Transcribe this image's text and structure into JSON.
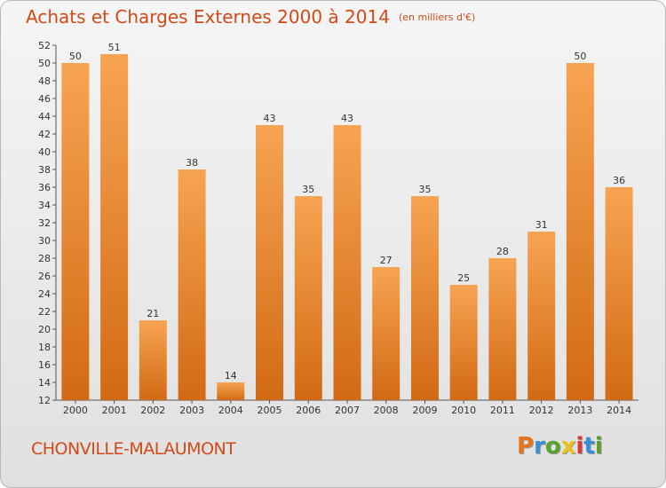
{
  "header": {
    "title": "Achats et Charges Externes 2000 à 2014",
    "subtitle": "(en milliers d'€)"
  },
  "footer": {
    "place": "CHONVILLE-MALAUMONT",
    "logo": "Proxiti"
  },
  "colors": {
    "accent_text": "#d14a18",
    "bar_top": "#f7a452",
    "bar_bottom": "#d26a14",
    "logo_letters": [
      "#e8731a",
      "#3a8fd6",
      "#5aa02c",
      "#e8c21a",
      "#d93a3a",
      "#3a8fd6",
      "#5aa02c"
    ]
  },
  "chart_data": {
    "type": "bar",
    "title": "Achats et Charges Externes 2000 à 2014",
    "subtitle": "(en milliers d'€)",
    "xlabel": "",
    "ylabel": "",
    "categories": [
      "2000",
      "2001",
      "2002",
      "2003",
      "2004",
      "2005",
      "2006",
      "2007",
      "2008",
      "2009",
      "2010",
      "2011",
      "2012",
      "2013",
      "2014"
    ],
    "values": [
      50,
      51,
      21,
      38,
      14,
      43,
      35,
      43,
      27,
      35,
      25,
      28,
      31,
      50,
      36
    ],
    "ylim": [
      12,
      52
    ],
    "yticks": [
      12,
      14,
      16,
      18,
      20,
      22,
      24,
      26,
      28,
      30,
      32,
      34,
      36,
      38,
      40,
      42,
      44,
      46,
      48,
      50,
      52
    ],
    "grid": false,
    "data_labels": true,
    "legend": "none"
  }
}
